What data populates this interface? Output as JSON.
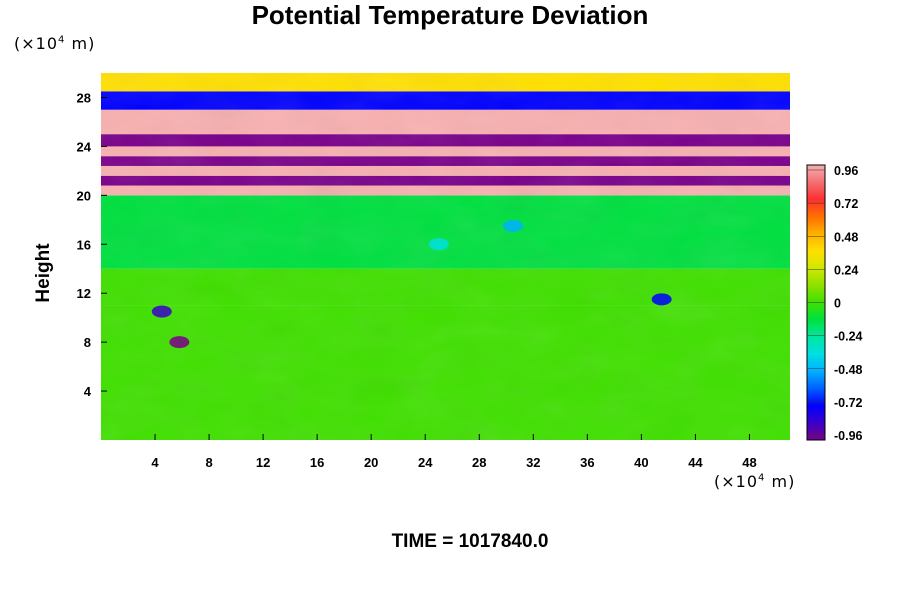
{
  "title": "Potential Temperature Deviation",
  "y_unit": {
    "pre": "(×10",
    "exp": "4",
    "post": " m)"
  },
  "x_unit": {
    "pre": "(×10",
    "exp": "4",
    "post": " m)"
  },
  "time_label": "TIME = 1017840.0",
  "chart_data": {
    "type": "heatmap",
    "title": "Potential Temperature Deviation",
    "ylabel": "Height",
    "xlabel": "",
    "x_ticks": [
      "4",
      "8",
      "12",
      "16",
      "20",
      "24",
      "28",
      "32",
      "36",
      "40",
      "44",
      "48"
    ],
    "y_ticks": [
      "4",
      "8",
      "12",
      "16",
      "20",
      "24",
      "28"
    ],
    "xlim": [
      0,
      51
    ],
    "ylim": [
      0,
      30
    ],
    "colorbar": {
      "ticks": [
        "0.96",
        "0.72",
        "0.48",
        "0.24",
        "0",
        "-0.24",
        "-0.48",
        "-0.72",
        "-0.96"
      ],
      "range": [
        -0.96,
        0.96
      ],
      "colors": [
        "#7a008a",
        "#3a00c8",
        "#0000ff",
        "#0060ff",
        "#00b0ff",
        "#00e0e0",
        "#00e6a0",
        "#00e040",
        "#40e000",
        "#90e000",
        "#d0e800",
        "#ffe000",
        "#ffb000",
        "#ff7000",
        "#ff3030",
        "#f07070",
        "#f8b0b0"
      ]
    },
    "bands": [
      {
        "y_from": 0,
        "y_to": 11,
        "value": -0.05
      },
      {
        "y_from": 11,
        "y_to": 14,
        "value": 0.05
      },
      {
        "y_from": 14,
        "y_to": 20,
        "value": -0.1
      },
      {
        "y_from": 20,
        "y_to": 20.8,
        "value": 0.96
      },
      {
        "y_from": 20.8,
        "y_to": 21.6,
        "value": -0.96
      },
      {
        "y_from": 21.6,
        "y_to": 22.4,
        "value": 0.96
      },
      {
        "y_from": 22.4,
        "y_to": 23.2,
        "value": -0.96
      },
      {
        "y_from": 23.2,
        "y_to": 24,
        "value": 0.9
      },
      {
        "y_from": 24,
        "y_to": 25,
        "value": -0.9
      },
      {
        "y_from": 25,
        "y_to": 27,
        "value": 0.96
      },
      {
        "y_from": 27,
        "y_to": 28.5,
        "value": -0.7
      },
      {
        "y_from": 28.5,
        "y_to": 30,
        "value": 0.3
      }
    ],
    "features": [
      {
        "x": 5.8,
        "y": 8.0,
        "value": -0.9
      },
      {
        "x": 4.5,
        "y": 10.5,
        "value": -0.8
      },
      {
        "x": 41.5,
        "y": 11.5,
        "value": -0.75
      },
      {
        "x": 30.5,
        "y": 17.5,
        "value": -0.5
      },
      {
        "x": 25,
        "y": 16,
        "value": -0.3
      }
    ]
  }
}
